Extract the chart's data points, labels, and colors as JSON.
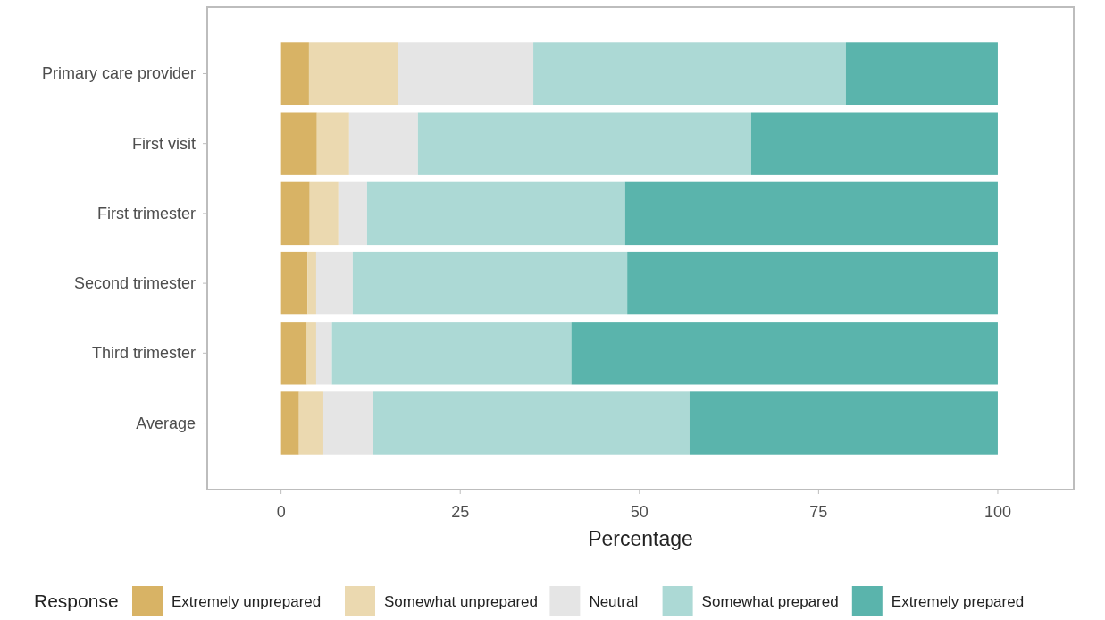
{
  "chart_data": {
    "type": "bar",
    "orientation": "horizontal",
    "stacked": true,
    "xlabel": "Percentage",
    "legend_title": "Response",
    "legend": "bottom",
    "grid": false,
    "categories": [
      "Primary care provider",
      "First visit",
      "First trimester",
      "Second trimester",
      "Third trimester",
      "Average"
    ],
    "xlim": [
      -10.3,
      110.6
    ],
    "xticks": [
      0,
      25,
      50,
      75,
      100
    ],
    "series": [
      {
        "name": "Extremely unprepared",
        "color": "#d8b365",
        "values": [
          3.9,
          5.0,
          4.0,
          3.7,
          3.6,
          2.5
        ]
      },
      {
        "name": "Somewhat unprepared",
        "color": "#ebd9b0",
        "values": [
          12.4,
          4.5,
          4.0,
          1.2,
          1.3,
          3.4
        ]
      },
      {
        "name": "Neutral",
        "color": "#e5e5e5",
        "values": [
          18.9,
          9.6,
          4.0,
          5.1,
          2.2,
          6.9
        ]
      },
      {
        "name": "Somewhat prepared",
        "color": "#acd9d5",
        "values": [
          43.6,
          46.5,
          36.0,
          38.3,
          33.4,
          44.2
        ]
      },
      {
        "name": "Extremely prepared",
        "color": "#5ab4ac",
        "values": [
          21.2,
          34.4,
          52.0,
          51.7,
          59.5,
          43.0
        ]
      }
    ]
  }
}
